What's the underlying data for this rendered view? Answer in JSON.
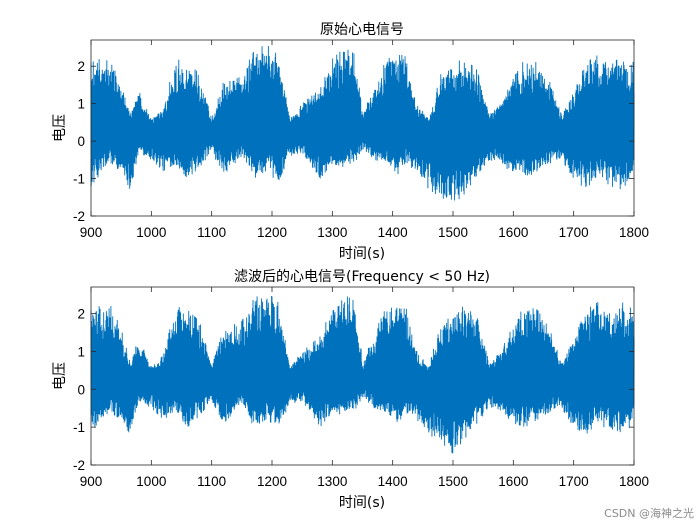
{
  "watermark": "CSDN @海神之光",
  "chart_data": [
    {
      "type": "line",
      "title": "原始心电信号",
      "xlabel": "时间(s)",
      "ylabel": "电压",
      "xlim": [
        900,
        1800
      ],
      "ylim": [
        -2,
        2.7
      ],
      "xticks": [
        "900",
        "1000",
        "1100",
        "1200",
        "1300",
        "1400",
        "1500",
        "1600",
        "1700",
        "1800"
      ],
      "yticks": [
        "-2",
        "-1",
        "0",
        "1",
        "2"
      ],
      "grid": false,
      "color": "#0072BD",
      "series": [
        {
          "values_description": "dense oscillating ECG signal",
          "envelope_upper": [
            [
              900,
              2.1
            ],
            [
              930,
              2.3
            ],
            [
              950,
              1.6
            ],
            [
              965,
              0.7
            ],
            [
              980,
              1.4
            ],
            [
              1000,
              0.6
            ],
            [
              1020,
              0.9
            ],
            [
              1040,
              2.2
            ],
            [
              1060,
              2.1
            ],
            [
              1080,
              1.8
            ],
            [
              1100,
              0.6
            ],
            [
              1120,
              1.6
            ],
            [
              1150,
              1.8
            ],
            [
              1170,
              2.4
            ],
            [
              1190,
              2.6
            ],
            [
              1210,
              2.3
            ],
            [
              1230,
              0.6
            ],
            [
              1250,
              1.0
            ],
            [
              1280,
              1.4
            ],
            [
              1300,
              2.2
            ],
            [
              1320,
              2.5
            ],
            [
              1340,
              2.3
            ],
            [
              1350,
              0.7
            ],
            [
              1370,
              1.5
            ],
            [
              1390,
              2.2
            ],
            [
              1410,
              2.3
            ],
            [
              1420,
              2.3
            ],
            [
              1440,
              1.0
            ],
            [
              1460,
              0.6
            ],
            [
              1480,
              1.8
            ],
            [
              1500,
              2.1
            ],
            [
              1520,
              2.2
            ],
            [
              1540,
              1.9
            ],
            [
              1560,
              0.7
            ],
            [
              1580,
              1.0
            ],
            [
              1600,
              1.8
            ],
            [
              1620,
              2.2
            ],
            [
              1640,
              2.1
            ],
            [
              1660,
              1.6
            ],
            [
              1680,
              0.7
            ],
            [
              1700,
              1.3
            ],
            [
              1720,
              2.1
            ],
            [
              1740,
              2.3
            ],
            [
              1760,
              2.0
            ],
            [
              1780,
              2.3
            ],
            [
              1800,
              2.1
            ]
          ],
          "envelope_lower": [
            [
              900,
              -1.2
            ],
            [
              930,
              -0.6
            ],
            [
              950,
              -0.8
            ],
            [
              965,
              -1.3
            ],
            [
              980,
              -0.3
            ],
            [
              1000,
              -0.5
            ],
            [
              1020,
              -0.8
            ],
            [
              1040,
              -0.6
            ],
            [
              1060,
              -1.0
            ],
            [
              1080,
              -0.7
            ],
            [
              1100,
              -0.3
            ],
            [
              1120,
              -0.9
            ],
            [
              1150,
              -0.4
            ],
            [
              1170,
              -1.0
            ],
            [
              1190,
              -0.8
            ],
            [
              1210,
              -1.1
            ],
            [
              1230,
              -0.4
            ],
            [
              1250,
              -0.3
            ],
            [
              1280,
              -1.0
            ],
            [
              1300,
              -0.6
            ],
            [
              1320,
              -0.7
            ],
            [
              1340,
              -0.5
            ],
            [
              1350,
              -0.2
            ],
            [
              1370,
              -0.5
            ],
            [
              1390,
              -0.6
            ],
            [
              1410,
              -0.9
            ],
            [
              1420,
              -0.6
            ],
            [
              1440,
              -0.8
            ],
            [
              1460,
              -1.3
            ],
            [
              1480,
              -1.5
            ],
            [
              1500,
              -1.7
            ],
            [
              1520,
              -1.4
            ],
            [
              1540,
              -0.9
            ],
            [
              1560,
              -0.5
            ],
            [
              1580,
              -0.6
            ],
            [
              1600,
              -0.9
            ],
            [
              1620,
              -1.0
            ],
            [
              1640,
              -0.8
            ],
            [
              1660,
              -0.6
            ],
            [
              1680,
              -0.5
            ],
            [
              1700,
              -1.0
            ],
            [
              1720,
              -1.3
            ],
            [
              1740,
              -0.9
            ],
            [
              1760,
              -1.2
            ],
            [
              1780,
              -1.3
            ],
            [
              1800,
              -0.9
            ]
          ]
        }
      ]
    },
    {
      "type": "line",
      "title": "滤波后的心电信号(Frequency < 50 Hz)",
      "xlabel": "时间(s)",
      "ylabel": "电压",
      "xlim": [
        900,
        1800
      ],
      "ylim": [
        -2,
        2.7
      ],
      "xticks": [
        "900",
        "1000",
        "1100",
        "1200",
        "1300",
        "1400",
        "1500",
        "1600",
        "1700",
        "1800"
      ],
      "yticks": [
        "-2",
        "-1",
        "0",
        "1",
        "2"
      ],
      "grid": false,
      "color": "#0072BD",
      "series": [
        {
          "values_description": "dense oscillating filtered ECG signal",
          "envelope_upper": [
            [
              900,
              2.1
            ],
            [
              930,
              2.3
            ],
            [
              950,
              1.6
            ],
            [
              965,
              0.7
            ],
            [
              980,
              1.4
            ],
            [
              1000,
              0.6
            ],
            [
              1020,
              0.9
            ],
            [
              1040,
              2.2
            ],
            [
              1060,
              2.1
            ],
            [
              1080,
              1.8
            ],
            [
              1100,
              0.6
            ],
            [
              1120,
              1.6
            ],
            [
              1150,
              1.8
            ],
            [
              1170,
              2.4
            ],
            [
              1190,
              2.6
            ],
            [
              1210,
              2.3
            ],
            [
              1230,
              0.6
            ],
            [
              1250,
              1.0
            ],
            [
              1280,
              1.4
            ],
            [
              1300,
              2.2
            ],
            [
              1320,
              2.5
            ],
            [
              1340,
              2.3
            ],
            [
              1350,
              0.7
            ],
            [
              1370,
              1.5
            ],
            [
              1390,
              2.2
            ],
            [
              1410,
              2.3
            ],
            [
              1420,
              2.3
            ],
            [
              1440,
              1.0
            ],
            [
              1460,
              0.6
            ],
            [
              1480,
              1.8
            ],
            [
              1500,
              2.1
            ],
            [
              1520,
              2.2
            ],
            [
              1540,
              1.9
            ],
            [
              1560,
              0.7
            ],
            [
              1580,
              1.0
            ],
            [
              1600,
              1.8
            ],
            [
              1620,
              2.2
            ],
            [
              1640,
              2.1
            ],
            [
              1660,
              1.6
            ],
            [
              1680,
              0.7
            ],
            [
              1700,
              1.3
            ],
            [
              1720,
              2.1
            ],
            [
              1740,
              2.3
            ],
            [
              1760,
              2.0
            ],
            [
              1780,
              2.3
            ],
            [
              1800,
              2.1
            ]
          ],
          "envelope_lower": [
            [
              900,
              -1.1
            ],
            [
              930,
              -0.6
            ],
            [
              950,
              -0.8
            ],
            [
              965,
              -1.2
            ],
            [
              980,
              -0.3
            ],
            [
              1000,
              -0.5
            ],
            [
              1020,
              -0.8
            ],
            [
              1040,
              -0.6
            ],
            [
              1060,
              -1.0
            ],
            [
              1080,
              -0.7
            ],
            [
              1100,
              -0.3
            ],
            [
              1120,
              -0.9
            ],
            [
              1150,
              -0.4
            ],
            [
              1170,
              -1.0
            ],
            [
              1190,
              -0.8
            ],
            [
              1210,
              -1.0
            ],
            [
              1230,
              -0.4
            ],
            [
              1250,
              -0.3
            ],
            [
              1280,
              -1.0
            ],
            [
              1300,
              -0.6
            ],
            [
              1320,
              -0.7
            ],
            [
              1340,
              -0.5
            ],
            [
              1350,
              -0.2
            ],
            [
              1370,
              -0.5
            ],
            [
              1390,
              -0.6
            ],
            [
              1410,
              -0.9
            ],
            [
              1420,
              -0.6
            ],
            [
              1440,
              -0.8
            ],
            [
              1460,
              -1.2
            ],
            [
              1480,
              -1.4
            ],
            [
              1500,
              -1.7
            ],
            [
              1520,
              -1.3
            ],
            [
              1540,
              -0.9
            ],
            [
              1560,
              -0.5
            ],
            [
              1580,
              -0.6
            ],
            [
              1600,
              -0.9
            ],
            [
              1620,
              -1.0
            ],
            [
              1640,
              -0.8
            ],
            [
              1660,
              -0.6
            ],
            [
              1680,
              -0.5
            ],
            [
              1700,
              -1.0
            ],
            [
              1720,
              -1.2
            ],
            [
              1740,
              -0.9
            ],
            [
              1760,
              -1.1
            ],
            [
              1780,
              -1.2
            ],
            [
              1800,
              -0.9
            ]
          ]
        }
      ]
    }
  ]
}
